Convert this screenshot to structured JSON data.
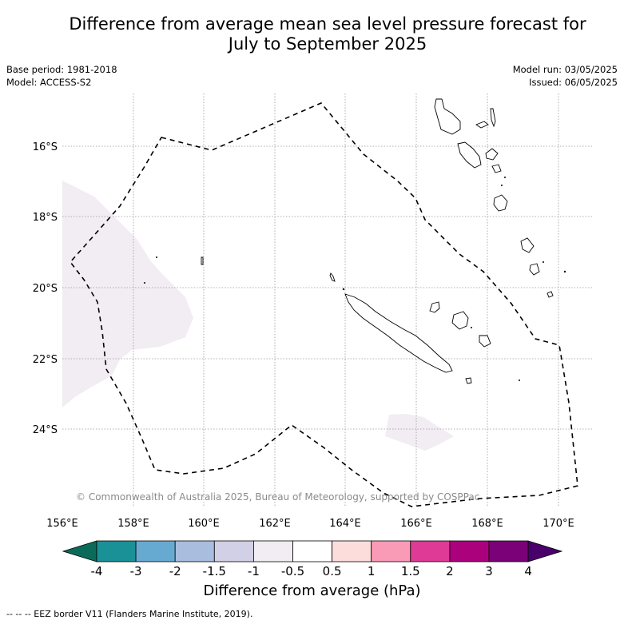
{
  "title_line1": "Difference from average mean sea level pressure forecast for",
  "title_line2": "July to September 2025",
  "base_period": "Base period: 1981-2018",
  "model": "Model: ACCESS-S2",
  "model_run": "Model run: 03/05/2025",
  "issued": "Issued: 06/05/2025",
  "copyright": "© Commonwealth of Australia 2025, Bureau of Meteorology, supported by COSPPac",
  "lat_labels": [
    "16°S",
    "18°S",
    "20°S",
    "22°S",
    "24°S"
  ],
  "lon_labels": [
    "156°E",
    "158°E",
    "160°E",
    "162°E",
    "164°E",
    "166°E",
    "168°E",
    "170°E"
  ],
  "colorbar": {
    "ticks": [
      "-4",
      "-3",
      "-2",
      "-1.5",
      "-1",
      "-0.5",
      "0.5",
      "1",
      "1.5",
      "2",
      "3",
      "4"
    ],
    "colors": [
      "#1a9097",
      "#66aad2",
      "#a9bede",
      "#d1d0e6",
      "#f2ecf3",
      "#ffffff",
      "#fddcdc",
      "#f99bb7",
      "#de3a96",
      "#ac017d",
      "#7a0177"
    ],
    "extend_low_color": "#0a6b5a",
    "extend_high_color": "#49006a",
    "label": "Difference from average (hPa)"
  },
  "legend_caption": "--  --  -- EEZ border V11 (Flanders Marine Institute, 2019)."
}
